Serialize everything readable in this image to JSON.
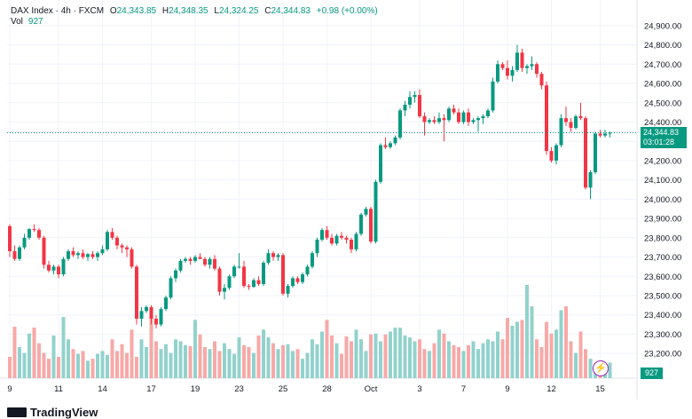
{
  "header": {
    "symbol": "DAX Index · 4h · FXCM",
    "open_label": "O",
    "open": "24,343.85",
    "high_label": "H",
    "high": "24,348.35",
    "low_label": "L",
    "low": "24,324.25",
    "close_label": "C",
    "close": "24,344.83",
    "change": "+0.98 (+0.00%)",
    "volume_label": "Vol",
    "volume": "927"
  },
  "price_axis": {
    "last_price": "24,344.83",
    "countdown": "03:01:28",
    "volume_tag": "927"
  },
  "brand": {
    "name": "TradingView"
  },
  "colors": {
    "up": "#089981",
    "down": "#f23645",
    "up_volume": "#92d2cc",
    "down_volume": "#f7a9a7"
  },
  "chart_data": {
    "type": "candlestick",
    "title": "DAX Index · 4h · FXCM",
    "interval": "4h",
    "ylim": [
      23150,
      24950
    ],
    "y_ticks": [
      24900,
      24800,
      24700,
      24600,
      24500,
      24400,
      24300,
      24200,
      24100,
      24000,
      23900,
      23800,
      23700,
      23600,
      23500,
      23400,
      23300,
      23200
    ],
    "y_tick_labels": [
      "24,900.00",
      "24,800.00",
      "24,700.00",
      "24,600.00",
      "24,500.00",
      "24,400.00",
      "24,300.00",
      "24,200.00",
      "24,100.00",
      "24,000.00",
      "23,900.00",
      "23,800.00",
      "23,700.00",
      "23,600.00",
      "23,500.00",
      "23,400.00",
      "23,300.00",
      "23,200.00"
    ],
    "x_labels": [
      {
        "label": "9",
        "index": 0
      },
      {
        "label": "11",
        "index": 10
      },
      {
        "label": "14",
        "index": 19
      },
      {
        "label": "17",
        "index": 29
      },
      {
        "label": "19",
        "index": 38
      },
      {
        "label": "23",
        "index": 47
      },
      {
        "label": "25",
        "index": 56
      },
      {
        "label": "28",
        "index": 65
      },
      {
        "label": "Oct",
        "index": 74
      },
      {
        "label": "3",
        "index": 84
      },
      {
        "label": "7",
        "index": 93
      },
      {
        "label": "9",
        "index": 102
      },
      {
        "label": "12",
        "index": 111
      },
      {
        "label": "15",
        "index": 121
      }
    ],
    "last_price_line": 24344.83,
    "candles": [
      [
        23860,
        23870,
        23700,
        23730
      ],
      [
        23730,
        23760,
        23680,
        23690
      ],
      [
        23690,
        23760,
        23680,
        23750
      ],
      [
        23750,
        23820,
        23740,
        23800
      ],
      [
        23800,
        23850,
        23790,
        23845
      ],
      [
        23845,
        23870,
        23830,
        23840
      ],
      [
        23840,
        23850,
        23790,
        23800
      ],
      [
        23800,
        23810,
        23640,
        23660
      ],
      [
        23660,
        23680,
        23620,
        23630
      ],
      [
        23630,
        23660,
        23610,
        23650
      ],
      [
        23650,
        23660,
        23590,
        23610
      ],
      [
        23610,
        23700,
        23600,
        23690
      ],
      [
        23690,
        23740,
        23680,
        23730
      ],
      [
        23730,
        23750,
        23700,
        23710
      ],
      [
        23710,
        23730,
        23690,
        23720
      ],
      [
        23720,
        23740,
        23690,
        23700
      ],
      [
        23700,
        23720,
        23680,
        23715
      ],
      [
        23715,
        23730,
        23690,
        23700
      ],
      [
        23700,
        23730,
        23680,
        23720
      ],
      [
        23720,
        23760,
        23710,
        23740
      ],
      [
        23740,
        23840,
        23730,
        23830
      ],
      [
        23830,
        23850,
        23790,
        23800
      ],
      [
        23800,
        23810,
        23740,
        23760
      ],
      [
        23760,
        23770,
        23720,
        23750
      ],
      [
        23750,
        23760,
        23700,
        23740
      ],
      [
        23740,
        23750,
        23640,
        23650
      ],
      [
        23650,
        23660,
        23350,
        23380
      ],
      [
        23380,
        23440,
        23340,
        23420
      ],
      [
        23420,
        23450,
        23410,
        23440
      ],
      [
        23440,
        23450,
        23350,
        23380
      ],
      [
        23380,
        23400,
        23330,
        23350
      ],
      [
        23350,
        23440,
        23340,
        23430
      ],
      [
        23430,
        23500,
        23420,
        23490
      ],
      [
        23490,
        23600,
        23480,
        23590
      ],
      [
        23590,
        23640,
        23570,
        23630
      ],
      [
        23630,
        23690,
        23620,
        23680
      ],
      [
        23680,
        23700,
        23670,
        23690
      ],
      [
        23690,
        23700,
        23660,
        23680
      ],
      [
        23680,
        23710,
        23670,
        23700
      ],
      [
        23700,
        23720,
        23690,
        23690
      ],
      [
        23690,
        23700,
        23650,
        23660
      ],
      [
        23660,
        23700,
        23640,
        23690
      ],
      [
        23690,
        23710,
        23630,
        23640
      ],
      [
        23640,
        23650,
        23500,
        23520
      ],
      [
        23520,
        23560,
        23480,
        23540
      ],
      [
        23540,
        23610,
        23530,
        23600
      ],
      [
        23600,
        23660,
        23590,
        23650
      ],
      [
        23650,
        23720,
        23640,
        23650
      ],
      [
        23650,
        23680,
        23540,
        23550
      ],
      [
        23550,
        23560,
        23530,
        23545
      ],
      [
        23545,
        23590,
        23540,
        23580
      ],
      [
        23580,
        23600,
        23550,
        23560
      ],
      [
        23560,
        23680,
        23550,
        23670
      ],
      [
        23670,
        23740,
        23660,
        23720
      ],
      [
        23720,
        23730,
        23680,
        23700
      ],
      [
        23700,
        23720,
        23680,
        23710
      ],
      [
        23710,
        23720,
        23500,
        23510
      ],
      [
        23510,
        23560,
        23490,
        23550
      ],
      [
        23550,
        23600,
        23540,
        23590
      ],
      [
        23590,
        23600,
        23560,
        23570
      ],
      [
        23570,
        23620,
        23560,
        23610
      ],
      [
        23610,
        23660,
        23600,
        23650
      ],
      [
        23650,
        23730,
        23640,
        23720
      ],
      [
        23720,
        23800,
        23700,
        23790
      ],
      [
        23790,
        23850,
        23780,
        23840
      ],
      [
        23840,
        23860,
        23790,
        23800
      ],
      [
        23800,
        23820,
        23760,
        23770
      ],
      [
        23770,
        23820,
        23760,
        23810
      ],
      [
        23810,
        23830,
        23790,
        23800
      ],
      [
        23800,
        23810,
        23770,
        23790
      ],
      [
        23790,
        23800,
        23720,
        23740
      ],
      [
        23740,
        23830,
        23730,
        23820
      ],
      [
        23820,
        23930,
        23810,
        23920
      ],
      [
        23920,
        23960,
        23910,
        23950
      ],
      [
        23950,
        23960,
        23770,
        23780
      ],
      [
        23780,
        24100,
        23770,
        24090
      ],
      [
        24090,
        24290,
        24080,
        24280
      ],
      [
        24280,
        24320,
        24260,
        24270
      ],
      [
        24270,
        24300,
        24260,
        24290
      ],
      [
        24290,
        24330,
        24280,
        24320
      ],
      [
        24320,
        24470,
        24310,
        24460
      ],
      [
        24460,
        24510,
        24430,
        24490
      ],
      [
        24490,
        24560,
        24470,
        24530
      ],
      [
        24530,
        24560,
        24500,
        24540
      ],
      [
        24540,
        24570,
        24420,
        24430
      ],
      [
        24430,
        24450,
        24330,
        24400
      ],
      [
        24400,
        24420,
        24390,
        24410
      ],
      [
        24410,
        24430,
        24390,
        24400
      ],
      [
        24400,
        24450,
        24390,
        24420
      ],
      [
        24420,
        24440,
        24300,
        24410
      ],
      [
        24410,
        24480,
        24400,
        24470
      ],
      [
        24470,
        24490,
        24440,
        24450
      ],
      [
        24450,
        24470,
        24390,
        24400
      ],
      [
        24400,
        24460,
        24390,
        24450
      ],
      [
        24450,
        24470,
        24380,
        24400
      ],
      [
        24400,
        24420,
        24390,
        24410
      ],
      [
        24410,
        24430,
        24350,
        24420
      ],
      [
        24420,
        24440,
        24390,
        24430
      ],
      [
        24430,
        24470,
        24420,
        24460
      ],
      [
        24460,
        24630,
        24450,
        24610
      ],
      [
        24610,
        24720,
        24600,
        24700
      ],
      [
        24700,
        24710,
        24670,
        24680
      ],
      [
        24680,
        24720,
        24620,
        24640
      ],
      [
        24640,
        24690,
        24610,
        24670
      ],
      [
        24670,
        24800,
        24660,
        24760
      ],
      [
        24760,
        24780,
        24660,
        24680
      ],
      [
        24680,
        24700,
        24650,
        24690
      ],
      [
        24690,
        24740,
        24670,
        24700
      ],
      [
        24700,
        24710,
        24630,
        24650
      ],
      [
        24650,
        24660,
        24570,
        24590
      ],
      [
        24590,
        24610,
        24230,
        24250
      ],
      [
        24250,
        24270,
        24190,
        24200
      ],
      [
        24200,
        24290,
        24180,
        24280
      ],
      [
        24280,
        24440,
        24270,
        24420
      ],
      [
        24420,
        24480,
        24380,
        24400
      ],
      [
        24400,
        24420,
        24350,
        24370
      ],
      [
        24370,
        24440,
        24360,
        24430
      ],
      [
        24430,
        24500,
        24410,
        24420
      ],
      [
        24420,
        24430,
        24050,
        24060
      ],
      [
        24060,
        24150,
        24000,
        24140
      ],
      [
        24140,
        24350,
        24130,
        24340
      ],
      [
        24340,
        24360,
        24320,
        24330
      ],
      [
        24330,
        24360,
        24320,
        24340
      ],
      [
        24340,
        24350,
        24320,
        24344.83
      ]
    ],
    "volumes": [
      22,
      53,
      32,
      26,
      46,
      52,
      36,
      26,
      20,
      44,
      22,
      63,
      40,
      30,
      25,
      28,
      18,
      20,
      25,
      28,
      24,
      40,
      28,
      35,
      26,
      50,
      22,
      40,
      32,
      70,
      38,
      30,
      35,
      26,
      40,
      38,
      34,
      33,
      60,
      45,
      32,
      30,
      38,
      28,
      36,
      30,
      25,
      42,
      34,
      32,
      26,
      44,
      50,
      42,
      36,
      30,
      34,
      35,
      28,
      30,
      20,
      26,
      40,
      35,
      48,
      60,
      44,
      36,
      25,
      43,
      38,
      50,
      40,
      28,
      45,
      46,
      38,
      45,
      48,
      52,
      52,
      44,
      42,
      38,
      40,
      30,
      28,
      36,
      50,
      46,
      38,
      34,
      32,
      28,
      34,
      38,
      30,
      36,
      40,
      38,
      48,
      40,
      62,
      54,
      58,
      60,
      96,
      74,
      40,
      32,
      58,
      46,
      50,
      70,
      74,
      38,
      26,
      48,
      30,
      20,
      10,
      12,
      14,
      16
    ]
  }
}
